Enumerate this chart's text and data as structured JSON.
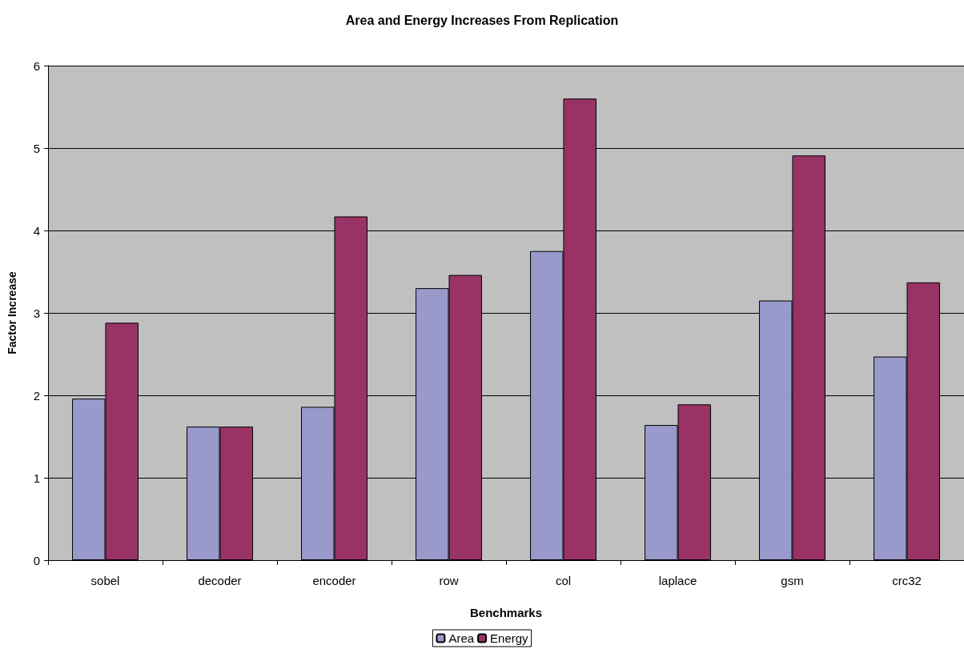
{
  "chart_data": {
    "type": "bar",
    "title": "Area and Energy Increases From Replication",
    "xlabel": "Benchmarks",
    "ylabel": "Factor Increase",
    "categories": [
      "sobel",
      "decoder",
      "encoder",
      "row",
      "col",
      "laplace",
      "gsm",
      "crc32"
    ],
    "series": [
      {
        "name": "Area",
        "color": "#9999cc",
        "values": [
          1.96,
          1.62,
          1.86,
          3.3,
          3.75,
          1.64,
          3.15,
          2.47
        ]
      },
      {
        "name": "Energy",
        "color": "#993366",
        "values": [
          2.88,
          1.62,
          4.17,
          3.46,
          5.6,
          1.89,
          4.91,
          3.37
        ]
      }
    ],
    "ylim": [
      0,
      6
    ],
    "yticks": [
      0,
      1,
      2,
      3,
      4,
      5,
      6
    ],
    "grid": "y",
    "legend": "bottom"
  }
}
